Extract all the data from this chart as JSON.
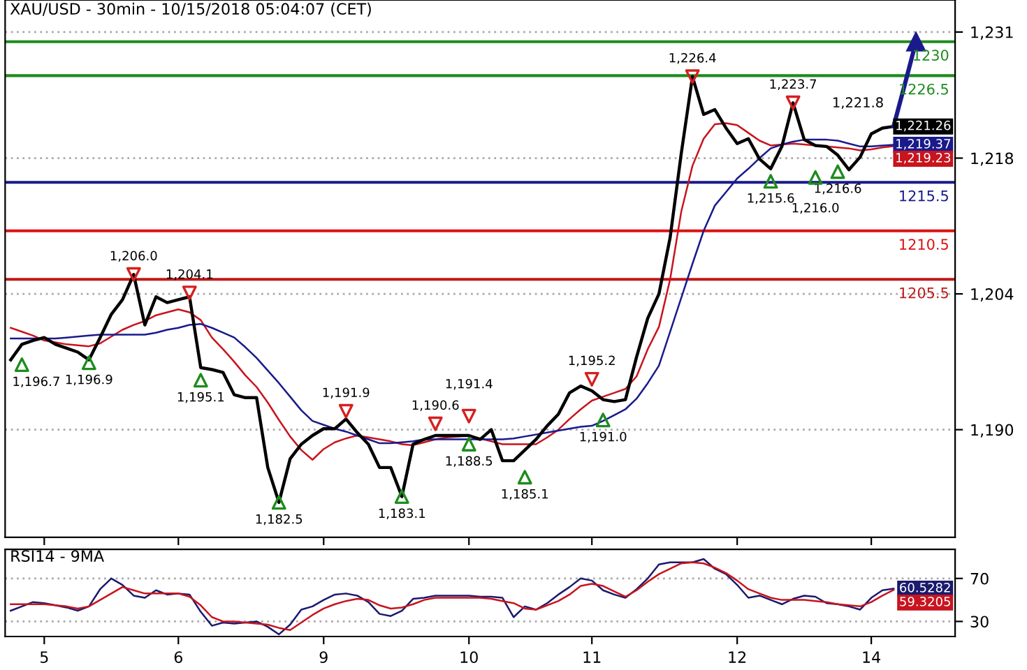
{
  "chart_data": [
    {
      "type": "line",
      "title": "XAU/USD - 30min - 10/15/2018 05:04:07 (CET)",
      "ylim": [
        1178.9,
        1234.3
      ],
      "categories": [
        null,
        null,
        null,
        "5",
        null,
        null,
        null,
        null,
        null,
        null,
        null,
        null,
        null,
        null,
        null,
        "6",
        null,
        null,
        null,
        null,
        null,
        null,
        null,
        null,
        null,
        null,
        null,
        null,
        "9",
        null,
        null,
        null,
        null,
        null,
        null,
        null,
        null,
        null,
        null,
        null,
        null,
        "10",
        null,
        null,
        null,
        null,
        null,
        null,
        null,
        null,
        null,
        null,
        "11",
        null,
        null,
        null,
        null,
        null,
        null,
        null,
        null,
        null,
        null,
        null,
        null,
        "12",
        null,
        null,
        null,
        null,
        null,
        null,
        null,
        null,
        null,
        null,
        null,
        "14",
        null,
        null,
        null,
        null,
        null,
        null,
        null
      ],
      "yticks": [
        {
          "value": 1190,
          "label": "1,190"
        },
        {
          "value": 1204,
          "label": "1,204"
        },
        {
          "value": 1218,
          "label": "1,218"
        },
        {
          "value": 1231,
          "label": "1,231"
        }
      ],
      "tick_labels": "y",
      "grid": "y",
      "ref_lines": [
        {
          "axis": "y",
          "value": 1230,
          "label": "1230",
          "color": "#1e8c1e"
        },
        {
          "axis": "y",
          "value": 1226.5,
          "label": "1226.5",
          "color": "#1e8c1e"
        },
        {
          "axis": "y",
          "value": 1215.5,
          "label": "1215.5",
          "color": "#1a1a8c"
        },
        {
          "axis": "y",
          "value": 1210.5,
          "label": "1210.5",
          "color": "#dd1111"
        },
        {
          "axis": "y",
          "value": 1205.5,
          "label": "1205.5",
          "color": "#c01818"
        }
      ],
      "annotations": [
        "1,221.8"
      ],
      "series": [
        {
          "color": "#c8141e",
          "values": [
            1200.5,
            1200.1,
            1199.7,
            1199.2,
            1199.0,
            1198.8,
            1198.7,
            1198.6,
            1198.9,
            1199.6,
            1200.3,
            1200.8,
            1201.2,
            1201.8,
            1202.1,
            1202.4,
            1202.1,
            1201.3,
            1199.5,
            1198.3,
            1197.0,
            1195.6,
            1194.4,
            1192.8,
            1191.0,
            1189.3,
            1187.9,
            1186.9,
            1188.0,
            1188.7,
            1189.1,
            1189.4,
            1189.2,
            1189.0,
            1188.8,
            1188.5,
            1188.4,
            1188.7,
            1189.0,
            1189.2,
            1189.3,
            1189.4,
            1189.1,
            1188.8,
            1188.5,
            1188.5,
            1188.5,
            1188.5,
            1189.2,
            1190.0,
            1191.1,
            1192.1,
            1193.0,
            1193.4,
            1193.8,
            1194.2,
            1195.5,
            1198.3,
            1200.6,
            1205.5,
            1212.5,
            1217.2,
            1220.0,
            1221.5,
            1221.6,
            1221.4,
            1220.6,
            1219.8,
            1219.3,
            1219.4,
            1219.5,
            1219.4,
            1219.3,
            1219.2,
            1219.1,
            1219.0,
            1218.8,
            1218.9,
            1219.1,
            1219.23,
            null,
            null,
            null,
            null,
            null
          ],
          "value_labels": [
            null,
            null,
            null,
            null,
            null,
            null,
            null,
            null,
            null,
            null,
            null,
            null,
            null,
            null,
            null,
            null,
            null,
            null,
            null,
            null,
            null,
            null,
            null,
            null,
            null,
            null,
            null,
            null,
            null,
            null,
            null,
            null,
            null,
            null,
            null,
            null,
            null,
            null,
            null,
            null,
            null,
            null,
            null,
            null,
            null,
            null,
            null,
            null,
            null,
            null,
            null,
            null,
            null,
            null,
            null,
            null,
            null,
            null,
            null,
            null,
            null,
            null,
            null,
            null,
            null,
            null,
            null,
            null,
            null,
            null,
            null,
            null,
            null,
            null,
            null,
            null,
            null,
            null,
            null,
            "1,219.23",
            null,
            null,
            null,
            null,
            null
          ]
        },
        {
          "color": "#1a1a8c",
          "values": [
            1199.4,
            1199.4,
            1199.4,
            1199.4,
            1199.4,
            1199.5,
            1199.6,
            1199.7,
            1199.8,
            1199.8,
            1199.8,
            1199.8,
            1199.8,
            1200.0,
            1200.3,
            1200.5,
            1200.8,
            1200.9,
            1200.5,
            1200.0,
            1199.5,
            1198.5,
            1197.4,
            1196.1,
            1194.8,
            1193.4,
            1192.0,
            1190.9,
            1190.5,
            1190.1,
            1189.8,
            1189.4,
            1189.0,
            1188.6,
            1188.6,
            1188.7,
            1188.8,
            1189.0,
            1189.0,
            1189.0,
            1189.0,
            1189.0,
            1189.0,
            1189.0,
            1189.0,
            1189.1,
            1189.3,
            1189.5,
            1189.7,
            1189.9,
            1190.1,
            1190.3,
            1190.4,
            1190.9,
            1191.5,
            1192.1,
            1193.2,
            1194.8,
            1196.6,
            1200.1,
            1203.6,
            1207.1,
            1210.5,
            1213.1,
            1214.5,
            1215.9,
            1216.9,
            1218.0,
            1219.0,
            1219.4,
            1219.7,
            1219.9,
            1219.9,
            1219.9,
            1219.8,
            1219.5,
            1219.2,
            1219.2,
            1219.3,
            1219.37,
            null,
            null,
            null,
            null,
            null
          ],
          "value_labels": [
            null,
            null,
            null,
            null,
            null,
            null,
            null,
            null,
            null,
            null,
            null,
            null,
            null,
            null,
            null,
            null,
            null,
            null,
            null,
            null,
            null,
            null,
            null,
            null,
            null,
            null,
            null,
            null,
            null,
            null,
            null,
            null,
            null,
            null,
            null,
            null,
            null,
            null,
            null,
            null,
            null,
            null,
            null,
            null,
            null,
            null,
            null,
            null,
            null,
            null,
            null,
            null,
            null,
            null,
            null,
            null,
            null,
            null,
            null,
            null,
            null,
            null,
            null,
            null,
            null,
            null,
            null,
            null,
            null,
            null,
            null,
            null,
            null,
            null,
            null,
            null,
            null,
            null,
            null,
            "1,219.37",
            null,
            null,
            null,
            null,
            null
          ]
        },
        {
          "color": "#000000",
          "values": [
            1197.2,
            1198.8,
            1199.2,
            1199.5,
            1198.8,
            1198.4,
            1198.0,
            1197.2,
            1199.5,
            1201.9,
            1203.4,
            1206.0,
            1200.8,
            1203.7,
            1203.1,
            1203.4,
            1203.7,
            1196.4,
            1196.2,
            1195.9,
            1193.6,
            1193.3,
            1193.3,
            1186.1,
            1182.5,
            1187.0,
            1188.5,
            1189.4,
            1190.1,
            1190.1,
            1191.1,
            1189.7,
            1188.5,
            1186.1,
            1186.1,
            1183.1,
            1188.5,
            1189.0,
            1189.4,
            1189.4,
            1189.4,
            1189.4,
            1189.0,
            1190.0,
            1186.8,
            1186.8,
            1187.9,
            1189.0,
            1190.4,
            1191.6,
            1193.8,
            1194.5,
            1194.0,
            1193.1,
            1192.9,
            1193.1,
            1197.5,
            1201.5,
            1204.0,
            1209.8,
            1218.5,
            1226.4,
            1222.5,
            1223.0,
            1221.1,
            1219.5,
            1220.0,
            1217.9,
            1216.9,
            1219.2,
            1223.7,
            1219.9,
            1219.3,
            1219.2,
            1218.3,
            1216.8,
            1218.1,
            1220.5,
            1221.1,
            1221.26,
            null,
            null,
            null,
            null,
            null
          ],
          "value_labels": [
            null,
            null,
            null,
            null,
            null,
            null,
            null,
            null,
            null,
            null,
            null,
            null,
            null,
            null,
            null,
            null,
            null,
            null,
            null,
            null,
            null,
            null,
            null,
            null,
            null,
            null,
            null,
            null,
            null,
            null,
            null,
            null,
            null,
            null,
            null,
            null,
            null,
            null,
            null,
            null,
            null,
            null,
            null,
            null,
            null,
            null,
            null,
            null,
            null,
            null,
            null,
            null,
            null,
            null,
            null,
            null,
            null,
            null,
            null,
            null,
            null,
            null,
            null,
            null,
            null,
            null,
            null,
            null,
            null,
            null,
            null,
            null,
            null,
            null,
            null,
            null,
            null,
            null,
            null,
            "1,221.26",
            null,
            null,
            null,
            null,
            null
          ]
        },
        {
          "color": "#1a1a8c",
          "values": [
            null,
            null,
            null,
            null,
            null,
            null,
            null,
            null,
            null,
            null,
            null,
            null,
            null,
            null,
            null,
            null,
            null,
            null,
            null,
            null,
            null,
            null,
            null,
            null,
            null,
            null,
            null,
            null,
            null,
            null,
            null,
            null,
            null,
            null,
            null,
            null,
            null,
            null,
            null,
            null,
            null,
            null,
            null,
            null,
            null,
            null,
            null,
            null,
            null,
            null,
            null,
            null,
            null,
            null,
            null,
            null,
            null,
            null,
            null,
            null,
            null,
            null,
            null,
            null,
            null,
            null,
            null,
            null,
            null,
            null,
            null,
            null,
            null,
            null,
            null,
            null,
            null,
            null,
            null,
            1221.3,
            1225.6,
            1230,
            null,
            null,
            null
          ]
        },
        {
          "type": "scatter",
          "color": "#d42020",
          "marker": "triangle_down",
          "values": [
            null,
            null,
            null,
            null,
            null,
            null,
            null,
            null,
            null,
            null,
            null,
            1206.0,
            null,
            null,
            null,
            null,
            1204.1,
            null,
            null,
            null,
            null,
            null,
            null,
            null,
            null,
            null,
            null,
            null,
            null,
            null,
            1191.9,
            null,
            null,
            null,
            null,
            null,
            null,
            null,
            1190.6,
            null,
            null,
            1191.4,
            null,
            null,
            null,
            null,
            null,
            null,
            null,
            null,
            null,
            null,
            1195.2,
            null,
            null,
            null,
            null,
            null,
            null,
            null,
            null,
            1226.4,
            null,
            null,
            null,
            null,
            null,
            null,
            null,
            null,
            1223.7,
            null,
            null,
            null,
            null,
            null,
            null,
            null,
            null,
            null,
            null,
            null,
            null,
            null,
            null
          ],
          "value_labels": [
            null,
            null,
            null,
            null,
            null,
            null,
            null,
            null,
            null,
            null,
            null,
            "1,206.0",
            null,
            null,
            null,
            null,
            "1,204.1",
            null,
            null,
            null,
            null,
            null,
            null,
            null,
            null,
            null,
            null,
            null,
            null,
            null,
            "1,191.9",
            null,
            null,
            null,
            null,
            null,
            null,
            null,
            "1,190.6",
            null,
            null,
            "1,191.4",
            null,
            null,
            null,
            null,
            null,
            null,
            null,
            null,
            null,
            null,
            "1,195.2",
            null,
            null,
            null,
            null,
            null,
            null,
            null,
            null,
            "1,226.4",
            null,
            null,
            null,
            null,
            null,
            null,
            null,
            null,
            "1,223.7",
            null,
            null,
            null,
            null,
            null,
            null,
            null,
            null,
            null,
            null,
            null,
            null,
            null,
            null
          ]
        },
        {
          "type": "scatter",
          "color": "#1e8c1e",
          "marker": "triangle",
          "values": [
            null,
            1196.7,
            null,
            null,
            null,
            null,
            null,
            1196.9,
            null,
            null,
            null,
            null,
            null,
            null,
            null,
            null,
            null,
            1195.1,
            null,
            null,
            null,
            null,
            null,
            null,
            1182.5,
            null,
            null,
            null,
            null,
            null,
            null,
            null,
            null,
            null,
            null,
            1183.1,
            null,
            null,
            null,
            null,
            null,
            1188.5,
            null,
            null,
            null,
            null,
            1185.1,
            null,
            null,
            null,
            null,
            null,
            null,
            1191.0,
            null,
            null,
            null,
            null,
            null,
            null,
            null,
            null,
            null,
            null,
            null,
            null,
            null,
            null,
            1215.6,
            null,
            null,
            null,
            1216.0,
            null,
            1216.6,
            null,
            null,
            null,
            null,
            null,
            null,
            null,
            null,
            null,
            null
          ],
          "value_labels": [
            null,
            "1,196.7",
            null,
            null,
            null,
            null,
            null,
            "1,196.9",
            null,
            null,
            null,
            null,
            null,
            null,
            null,
            null,
            null,
            "1,195.1",
            null,
            null,
            null,
            null,
            null,
            null,
            "1,182.5",
            null,
            null,
            null,
            null,
            null,
            null,
            null,
            null,
            null,
            null,
            "1,183.1",
            null,
            null,
            null,
            null,
            null,
            "1,188.5",
            null,
            null,
            null,
            null,
            "1,185.1",
            null,
            null,
            null,
            null,
            null,
            null,
            "1,191.0",
            null,
            null,
            null,
            null,
            null,
            null,
            null,
            null,
            null,
            null,
            null,
            null,
            null,
            null,
            "1,215.6",
            null,
            null,
            null,
            "1,216.0",
            null,
            "1,216.6",
            null,
            null,
            null,
            null,
            null,
            null,
            null,
            null,
            null,
            null
          ]
        }
      ]
    },
    {
      "type": "line",
      "title": "RSI14 - 9MA",
      "ylim": [
        16,
        97
      ],
      "categories": [
        null,
        null,
        null,
        "5",
        null,
        null,
        null,
        null,
        null,
        null,
        null,
        null,
        null,
        null,
        null,
        "6",
        null,
        null,
        null,
        null,
        null,
        null,
        null,
        null,
        null,
        null,
        null,
        null,
        "9",
        null,
        null,
        null,
        null,
        null,
        null,
        null,
        null,
        null,
        null,
        null,
        null,
        "10",
        null,
        null,
        null,
        null,
        null,
        null,
        null,
        null,
        null,
        null,
        "11",
        null,
        null,
        null,
        null,
        null,
        null,
        null,
        null,
        null,
        null,
        null,
        null,
        "12",
        null,
        null,
        null,
        null,
        null,
        null,
        null,
        null,
        null,
        null,
        null,
        "14",
        null,
        null,
        null,
        null,
        null,
        null,
        null
      ],
      "yticks": [
        30,
        70
      ],
      "grid": "y",
      "series": [
        {
          "color": "#1a1a6e",
          "values": [
            40,
            44,
            48,
            47,
            45,
            43,
            40,
            44,
            60,
            70,
            64,
            54,
            52,
            59,
            55,
            56,
            55,
            39,
            26,
            29,
            28,
            29,
            30,
            25,
            18,
            27,
            41,
            44,
            50,
            55,
            56,
            54,
            48,
            37,
            35,
            40,
            51,
            52,
            54,
            54,
            54,
            54,
            53,
            53,
            52,
            34,
            44,
            41,
            47,
            55,
            62,
            70,
            68,
            59,
            55,
            52,
            60,
            70,
            83,
            85,
            85,
            85,
            88,
            79,
            74,
            64,
            52,
            54,
            50,
            46,
            51,
            54,
            53,
            47,
            46,
            44,
            41,
            52,
            59,
            60.5282,
            null,
            null,
            null,
            null,
            null
          ],
          "value_labels": [
            null,
            null,
            null,
            null,
            null,
            null,
            null,
            null,
            null,
            null,
            null,
            null,
            null,
            null,
            null,
            null,
            null,
            null,
            null,
            null,
            null,
            null,
            null,
            null,
            null,
            null,
            null,
            null,
            null,
            null,
            null,
            null,
            null,
            null,
            null,
            null,
            null,
            null,
            null,
            null,
            null,
            null,
            null,
            null,
            null,
            null,
            null,
            null,
            null,
            null,
            null,
            null,
            null,
            null,
            null,
            null,
            null,
            null,
            null,
            null,
            null,
            null,
            null,
            null,
            null,
            null,
            null,
            null,
            null,
            null,
            null,
            null,
            null,
            null,
            null,
            null,
            null,
            null,
            null,
            "60.5282",
            null,
            null,
            null,
            null,
            null
          ]
        },
        {
          "color": "#c8141e",
          "values": [
            46,
            46,
            46,
            46,
            45,
            44,
            42,
            44,
            50,
            56,
            62,
            59,
            56,
            56,
            56,
            56,
            53,
            45,
            34,
            30,
            30,
            29,
            28,
            27,
            24,
            22,
            29,
            36,
            42,
            46,
            49,
            51,
            50,
            45,
            42,
            43,
            46,
            50,
            52,
            52,
            52,
            52,
            52,
            51,
            49,
            47,
            42,
            41,
            45,
            49,
            55,
            63,
            65,
            63,
            58,
            53,
            59,
            67,
            74,
            79,
            84,
            85,
            84,
            80,
            75,
            68,
            60,
            56,
            52,
            50,
            50,
            50,
            49,
            48,
            46,
            45,
            44,
            48,
            54,
            59.3205,
            null,
            null,
            null,
            null,
            null
          ],
          "value_labels": [
            null,
            null,
            null,
            null,
            null,
            null,
            null,
            null,
            null,
            null,
            null,
            null,
            null,
            null,
            null,
            null,
            null,
            null,
            null,
            null,
            null,
            null,
            null,
            null,
            null,
            null,
            null,
            null,
            null,
            null,
            null,
            null,
            null,
            null,
            null,
            null,
            null,
            null,
            null,
            null,
            null,
            null,
            null,
            null,
            null,
            null,
            null,
            null,
            null,
            null,
            null,
            null,
            null,
            null,
            null,
            null,
            null,
            null,
            null,
            null,
            null,
            null,
            null,
            null,
            null,
            null,
            null,
            null,
            null,
            null,
            null,
            null,
            null,
            null,
            null,
            null,
            null,
            null,
            null,
            "59.3205",
            null,
            null,
            null,
            null,
            null
          ]
        }
      ]
    }
  ]
}
